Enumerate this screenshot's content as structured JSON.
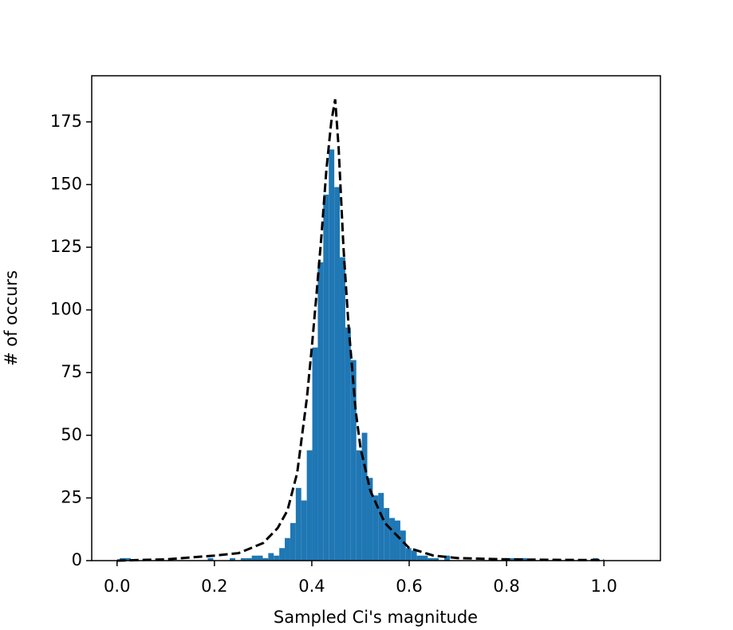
{
  "chart_data": {
    "type": "histogram",
    "xlabel": "Sampled Ci's magnitude",
    "ylabel": "# of occurs",
    "color": "#1f77b4",
    "bins": [
      0.0055,
      0.0168,
      0.0281,
      0.0394,
      0.0507,
      0.062,
      0.0733,
      0.0846,
      0.0959,
      0.1072,
      0.1185,
      0.1298,
      0.1411,
      0.1524,
      0.1637,
      0.175,
      0.1863,
      0.1976,
      0.2089,
      0.2202,
      0.2315,
      0.2428,
      0.2541,
      0.2654,
      0.2767,
      0.288,
      0.2993,
      0.3106,
      0.3219,
      0.3332,
      0.3445,
      0.3558,
      0.3671,
      0.3784,
      0.3897,
      0.401,
      0.4123,
      0.4236,
      0.4349,
      0.4462,
      0.4575,
      0.4688,
      0.4801,
      0.4914,
      0.5027,
      0.514,
      0.5253,
      0.5366,
      0.5479,
      0.5592,
      0.5705,
      0.5818,
      0.5931,
      0.6044,
      0.6157,
      0.627,
      0.6383,
      0.6496,
      0.6609,
      0.6722,
      0.6835,
      0.6948,
      0.7061,
      0.7174,
      0.7287,
      0.74,
      0.7513,
      0.7626,
      0.7739,
      0.7852,
      0.7965,
      0.8078,
      0.8191,
      0.8304,
      0.8417,
      0.853,
      0.8643,
      0.8756,
      0.8869,
      0.8982,
      0.9095,
      0.9208,
      0.9321,
      0.9434,
      0.9547,
      0.966,
      0.9773,
      0.9886,
      0.9999
    ],
    "values": [
      1,
      1,
      0,
      0,
      0,
      0,
      0,
      0,
      0,
      0,
      0,
      0,
      0,
      0,
      0,
      0,
      1,
      0,
      0,
      0,
      1,
      0,
      1,
      1,
      2,
      2,
      1,
      3,
      2,
      5,
      9,
      15,
      29,
      24,
      44,
      85,
      119,
      146,
      164,
      149,
      121,
      93,
      80,
      44,
      51,
      33,
      26,
      27,
      21,
      17,
      16,
      12,
      5,
      4,
      2,
      2,
      1,
      1,
      0,
      2,
      0,
      0,
      0,
      0,
      0,
      0,
      0,
      0,
      0,
      0,
      1,
      1,
      1,
      1,
      0,
      0,
      0,
      0,
      0,
      0,
      0,
      0,
      0,
      0,
      0,
      0,
      1,
      0
    ],
    "curve": {
      "color": "#000000",
      "linestyle": "dashed",
      "x": [
        0,
        0.1,
        0.2,
        0.25,
        0.3,
        0.33,
        0.35,
        0.37,
        0.39,
        0.4,
        0.41,
        0.42,
        0.43,
        0.44,
        0.448,
        0.455,
        0.465,
        0.475,
        0.49,
        0.5,
        0.52,
        0.55,
        0.6,
        0.65,
        0.7,
        0.8,
        0.9,
        1.0
      ],
      "values": [
        0,
        0.5,
        2,
        3,
        7,
        13,
        20,
        35,
        65,
        85,
        107,
        130,
        156,
        175,
        184,
        165,
        125,
        95,
        60,
        45,
        28,
        15,
        5,
        2,
        1,
        0.5,
        0.3,
        0.2
      ]
    },
    "xlim": [
      -0.052,
      1.116
    ],
    "ylim": [
      0,
      193.4
    ],
    "xticks": [
      {
        "value": 0,
        "label": "0.0"
      },
      {
        "value": 0.2,
        "label": "0.2"
      },
      {
        "value": 0.4,
        "label": "0.4"
      },
      {
        "value": 0.6,
        "label": "0.6"
      },
      {
        "value": 0.8,
        "label": "0.8"
      },
      {
        "value": 1,
        "label": "1.0"
      }
    ],
    "yticks": [
      0,
      25,
      50,
      75,
      100,
      125,
      150,
      175
    ]
  }
}
